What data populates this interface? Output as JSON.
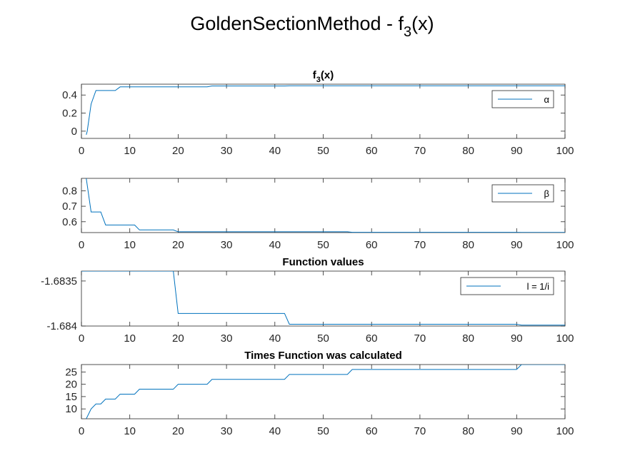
{
  "figure": {
    "title_main": "GoldenSectionMethod - f",
    "title_sub": "3",
    "title_tail": "(x)"
  },
  "chart_data": [
    {
      "type": "line",
      "title": "f",
      "title_sub": "3",
      "title_tail": "(x)",
      "xlim": [
        0,
        100
      ],
      "ylim": [
        -0.08,
        0.52
      ],
      "xticks": [
        0,
        10,
        20,
        30,
        40,
        50,
        60,
        70,
        80,
        90,
        100
      ],
      "yticks": [
        0,
        0.2,
        0.4
      ],
      "ytick_labels": [
        "0",
        "0.2",
        "0.4"
      ],
      "legend": "α",
      "legend_position": "top-right",
      "series": [
        {
          "name": "α",
          "x": [
            1,
            1.2,
            2,
            3,
            4,
            5,
            7,
            8,
            12,
            13,
            20,
            26,
            27,
            42,
            43,
            55,
            56,
            90,
            91,
            100
          ],
          "y": [
            -0.04,
            0,
            0.3,
            0.45,
            0.45,
            0.45,
            0.45,
            0.49,
            0.49,
            0.49,
            0.49,
            0.49,
            0.5,
            0.5,
            0.502,
            0.502,
            0.502,
            0.502,
            0.502,
            0.502
          ]
        }
      ],
      "color": "#0072bd"
    },
    {
      "type": "line",
      "title": "",
      "xlim": [
        0,
        100
      ],
      "ylim": [
        0.53,
        0.88
      ],
      "xticks": [
        0,
        10,
        20,
        30,
        40,
        50,
        60,
        70,
        80,
        90,
        100
      ],
      "yticks": [
        0.6,
        0.7,
        0.8
      ],
      "ytick_labels": [
        "0.6",
        "0.7",
        "0.8"
      ],
      "legend": "β",
      "legend_position": "top-right",
      "series": [
        {
          "name": "β",
          "x": [
            1,
            2,
            4,
            5,
            11,
            12,
            19,
            20,
            55,
            56,
            90,
            91,
            100
          ],
          "y": [
            0.88,
            0.663,
            0.663,
            0.579,
            0.579,
            0.547,
            0.547,
            0.535,
            0.535,
            0.532,
            0.532,
            0.531,
            0.531
          ]
        }
      ],
      "color": "#0072bd"
    },
    {
      "type": "line",
      "title": "Function values",
      "xlim": [
        0,
        100
      ],
      "ylim": [
        -1.684,
        -1.68339
      ],
      "xticks": [
        0,
        10,
        20,
        30,
        40,
        50,
        60,
        70,
        80,
        90,
        100
      ],
      "yticks": [
        -1.684,
        -1.6835
      ],
      "ytick_labels": [
        "-1.684",
        "-1.6835"
      ],
      "legend": "l = 1/i",
      "legend_position": "top-right",
      "series": [
        {
          "name": "l = 1/i",
          "x": [
            0,
            19,
            20,
            42,
            43,
            90,
            91,
            100
          ],
          "y": [
            -1.68339,
            -1.68339,
            -1.68386,
            -1.68386,
            -1.68398,
            -1.68398,
            -1.68399,
            -1.68399
          ]
        }
      ],
      "color": "#0072bd"
    },
    {
      "type": "line",
      "title": "Times Function was calculated",
      "xlim": [
        0,
        100
      ],
      "ylim": [
        6,
        28
      ],
      "xticks": [
        0,
        10,
        20,
        30,
        40,
        50,
        60,
        70,
        80,
        90,
        100
      ],
      "yticks": [
        10,
        15,
        20,
        25
      ],
      "ytick_labels": [
        "10",
        "15",
        "20",
        "25"
      ],
      "legend": "",
      "series": [
        {
          "name": "",
          "x": [
            1,
            2,
            3,
            4,
            5,
            7,
            8,
            11,
            12,
            19,
            20,
            26,
            27,
            42,
            43,
            55,
            56,
            90,
            91,
            100
          ],
          "y": [
            6,
            10,
            12,
            12,
            14,
            14,
            16,
            16,
            18,
            18,
            20,
            20,
            22,
            22,
            24,
            24,
            26,
            26,
            28,
            28
          ]
        }
      ],
      "color": "#0072bd"
    }
  ]
}
